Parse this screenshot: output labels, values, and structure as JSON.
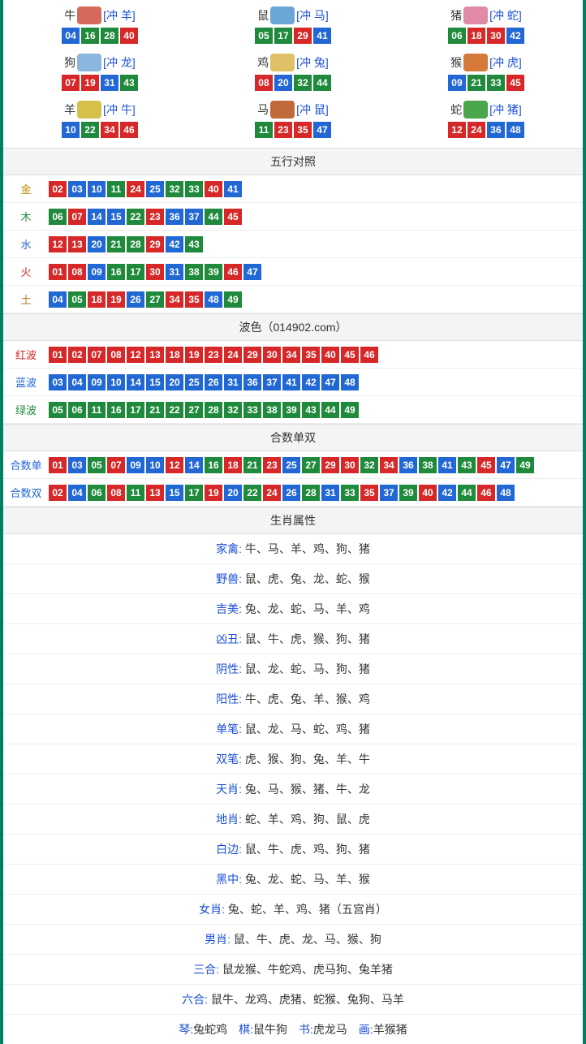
{
  "colors": {
    "red": "#d62828",
    "blue": "#2268d4",
    "green": "#1f8a3b",
    "border": "#008060",
    "title_bg": "#f4f4f4",
    "link_blue": "#1a4fd6",
    "gold": "#c08a00",
    "wood": "#1f8a3b",
    "water": "#2268d4",
    "fire": "#d62828",
    "earth": "#b07d2b"
  },
  "zodiac": [
    {
      "name": "牛",
      "conflict": "[冲 羊]",
      "img_color": "#d66a5a",
      "nums": [
        {
          "n": "04",
          "c": "blue"
        },
        {
          "n": "16",
          "c": "green"
        },
        {
          "n": "28",
          "c": "green"
        },
        {
          "n": "40",
          "c": "red"
        }
      ]
    },
    {
      "name": "鼠",
      "conflict": "[冲 马]",
      "img_color": "#6aa6d6",
      "nums": [
        {
          "n": "05",
          "c": "green"
        },
        {
          "n": "17",
          "c": "green"
        },
        {
          "n": "29",
          "c": "red"
        },
        {
          "n": "41",
          "c": "blue"
        }
      ]
    },
    {
      "name": "猪",
      "conflict": "[冲 蛇]",
      "img_color": "#e08aa6",
      "nums": [
        {
          "n": "06",
          "c": "green"
        },
        {
          "n": "18",
          "c": "red"
        },
        {
          "n": "30",
          "c": "red"
        },
        {
          "n": "42",
          "c": "blue"
        }
      ]
    },
    {
      "name": "狗",
      "conflict": "[冲 龙]",
      "img_color": "#8ab6e0",
      "nums": [
        {
          "n": "07",
          "c": "red"
        },
        {
          "n": "19",
          "c": "red"
        },
        {
          "n": "31",
          "c": "blue"
        },
        {
          "n": "43",
          "c": "green"
        }
      ]
    },
    {
      "name": "鸡",
      "conflict": "[冲 兔]",
      "img_color": "#e0c066",
      "nums": [
        {
          "n": "08",
          "c": "red"
        },
        {
          "n": "20",
          "c": "blue"
        },
        {
          "n": "32",
          "c": "green"
        },
        {
          "n": "44",
          "c": "green"
        }
      ]
    },
    {
      "name": "猴",
      "conflict": "[冲 虎]",
      "img_color": "#d67a3a",
      "nums": [
        {
          "n": "09",
          "c": "blue"
        },
        {
          "n": "21",
          "c": "green"
        },
        {
          "n": "33",
          "c": "green"
        },
        {
          "n": "45",
          "c": "red"
        }
      ]
    },
    {
      "name": "羊",
      "conflict": "[冲 牛]",
      "img_color": "#d6c04a",
      "nums": [
        {
          "n": "10",
          "c": "blue"
        },
        {
          "n": "22",
          "c": "green"
        },
        {
          "n": "34",
          "c": "red"
        },
        {
          "n": "46",
          "c": "red"
        }
      ]
    },
    {
      "name": "马",
      "conflict": "[冲 鼠]",
      "img_color": "#c06a3a",
      "nums": [
        {
          "n": "11",
          "c": "green"
        },
        {
          "n": "23",
          "c": "red"
        },
        {
          "n": "35",
          "c": "red"
        },
        {
          "n": "47",
          "c": "blue"
        }
      ]
    },
    {
      "name": "蛇",
      "conflict": "[冲 猪]",
      "img_color": "#4aa64a",
      "nums": [
        {
          "n": "12",
          "c": "red"
        },
        {
          "n": "24",
          "c": "red"
        },
        {
          "n": "36",
          "c": "blue"
        },
        {
          "n": "48",
          "c": "blue"
        }
      ]
    }
  ],
  "wuxing_title": "五行对照",
  "wuxing": [
    {
      "name": "金",
      "label_color": "gold",
      "nums": [
        {
          "n": "02",
          "c": "red"
        },
        {
          "n": "03",
          "c": "blue"
        },
        {
          "n": "10",
          "c": "blue"
        },
        {
          "n": "11",
          "c": "green"
        },
        {
          "n": "24",
          "c": "red"
        },
        {
          "n": "25",
          "c": "blue"
        },
        {
          "n": "32",
          "c": "green"
        },
        {
          "n": "33",
          "c": "green"
        },
        {
          "n": "40",
          "c": "red"
        },
        {
          "n": "41",
          "c": "blue"
        }
      ]
    },
    {
      "name": "木",
      "label_color": "wood",
      "nums": [
        {
          "n": "06",
          "c": "green"
        },
        {
          "n": "07",
          "c": "red"
        },
        {
          "n": "14",
          "c": "blue"
        },
        {
          "n": "15",
          "c": "blue"
        },
        {
          "n": "22",
          "c": "green"
        },
        {
          "n": "23",
          "c": "red"
        },
        {
          "n": "36",
          "c": "blue"
        },
        {
          "n": "37",
          "c": "blue"
        },
        {
          "n": "44",
          "c": "green"
        },
        {
          "n": "45",
          "c": "red"
        }
      ]
    },
    {
      "name": "水",
      "label_color": "water",
      "nums": [
        {
          "n": "12",
          "c": "red"
        },
        {
          "n": "13",
          "c": "red"
        },
        {
          "n": "20",
          "c": "blue"
        },
        {
          "n": "21",
          "c": "green"
        },
        {
          "n": "28",
          "c": "green"
        },
        {
          "n": "29",
          "c": "red"
        },
        {
          "n": "42",
          "c": "blue"
        },
        {
          "n": "43",
          "c": "green"
        }
      ]
    },
    {
      "name": "火",
      "label_color": "fire",
      "nums": [
        {
          "n": "01",
          "c": "red"
        },
        {
          "n": "08",
          "c": "red"
        },
        {
          "n": "09",
          "c": "blue"
        },
        {
          "n": "16",
          "c": "green"
        },
        {
          "n": "17",
          "c": "green"
        },
        {
          "n": "30",
          "c": "red"
        },
        {
          "n": "31",
          "c": "blue"
        },
        {
          "n": "38",
          "c": "green"
        },
        {
          "n": "39",
          "c": "green"
        },
        {
          "n": "46",
          "c": "red"
        },
        {
          "n": "47",
          "c": "blue"
        }
      ]
    },
    {
      "name": "土",
      "label_color": "earth",
      "nums": [
        {
          "n": "04",
          "c": "blue"
        },
        {
          "n": "05",
          "c": "green"
        },
        {
          "n": "18",
          "c": "red"
        },
        {
          "n": "19",
          "c": "red"
        },
        {
          "n": "26",
          "c": "blue"
        },
        {
          "n": "27",
          "c": "green"
        },
        {
          "n": "34",
          "c": "red"
        },
        {
          "n": "35",
          "c": "red"
        },
        {
          "n": "48",
          "c": "blue"
        },
        {
          "n": "49",
          "c": "green"
        }
      ]
    }
  ],
  "bose_title": "波色（014902.com）",
  "bose": [
    {
      "name": "红波",
      "label_color": "fire",
      "nums": [
        {
          "n": "01",
          "c": "red"
        },
        {
          "n": "02",
          "c": "red"
        },
        {
          "n": "07",
          "c": "red"
        },
        {
          "n": "08",
          "c": "red"
        },
        {
          "n": "12",
          "c": "red"
        },
        {
          "n": "13",
          "c": "red"
        },
        {
          "n": "18",
          "c": "red"
        },
        {
          "n": "19",
          "c": "red"
        },
        {
          "n": "23",
          "c": "red"
        },
        {
          "n": "24",
          "c": "red"
        },
        {
          "n": "29",
          "c": "red"
        },
        {
          "n": "30",
          "c": "red"
        },
        {
          "n": "34",
          "c": "red"
        },
        {
          "n": "35",
          "c": "red"
        },
        {
          "n": "40",
          "c": "red"
        },
        {
          "n": "45",
          "c": "red"
        },
        {
          "n": "46",
          "c": "red"
        }
      ]
    },
    {
      "name": "蓝波",
      "label_color": "water",
      "nums": [
        {
          "n": "03",
          "c": "blue"
        },
        {
          "n": "04",
          "c": "blue"
        },
        {
          "n": "09",
          "c": "blue"
        },
        {
          "n": "10",
          "c": "blue"
        },
        {
          "n": "14",
          "c": "blue"
        },
        {
          "n": "15",
          "c": "blue"
        },
        {
          "n": "20",
          "c": "blue"
        },
        {
          "n": "25",
          "c": "blue"
        },
        {
          "n": "26",
          "c": "blue"
        },
        {
          "n": "31",
          "c": "blue"
        },
        {
          "n": "36",
          "c": "blue"
        },
        {
          "n": "37",
          "c": "blue"
        },
        {
          "n": "41",
          "c": "blue"
        },
        {
          "n": "42",
          "c": "blue"
        },
        {
          "n": "47",
          "c": "blue"
        },
        {
          "n": "48",
          "c": "blue"
        }
      ]
    },
    {
      "name": "绿波",
      "label_color": "wood",
      "nums": [
        {
          "n": "05",
          "c": "green"
        },
        {
          "n": "06",
          "c": "green"
        },
        {
          "n": "11",
          "c": "green"
        },
        {
          "n": "16",
          "c": "green"
        },
        {
          "n": "17",
          "c": "green"
        },
        {
          "n": "21",
          "c": "green"
        },
        {
          "n": "22",
          "c": "green"
        },
        {
          "n": "27",
          "c": "green"
        },
        {
          "n": "28",
          "c": "green"
        },
        {
          "n": "32",
          "c": "green"
        },
        {
          "n": "33",
          "c": "green"
        },
        {
          "n": "38",
          "c": "green"
        },
        {
          "n": "39",
          "c": "green"
        },
        {
          "n": "43",
          "c": "green"
        },
        {
          "n": "44",
          "c": "green"
        },
        {
          "n": "49",
          "c": "green"
        }
      ]
    }
  ],
  "heshu_title": "合数单双",
  "heshu": [
    {
      "name": "合数单",
      "label_color": "water",
      "nums": [
        {
          "n": "01",
          "c": "red"
        },
        {
          "n": "03",
          "c": "blue"
        },
        {
          "n": "05",
          "c": "green"
        },
        {
          "n": "07",
          "c": "red"
        },
        {
          "n": "09",
          "c": "blue"
        },
        {
          "n": "10",
          "c": "blue"
        },
        {
          "n": "12",
          "c": "red"
        },
        {
          "n": "14",
          "c": "blue"
        },
        {
          "n": "16",
          "c": "green"
        },
        {
          "n": "18",
          "c": "red"
        },
        {
          "n": "21",
          "c": "green"
        },
        {
          "n": "23",
          "c": "red"
        },
        {
          "n": "25",
          "c": "blue"
        },
        {
          "n": "27",
          "c": "green"
        },
        {
          "n": "29",
          "c": "red"
        },
        {
          "n": "30",
          "c": "red"
        },
        {
          "n": "32",
          "c": "green"
        },
        {
          "n": "34",
          "c": "red"
        },
        {
          "n": "36",
          "c": "blue"
        },
        {
          "n": "38",
          "c": "green"
        },
        {
          "n": "41",
          "c": "blue"
        },
        {
          "n": "43",
          "c": "green"
        },
        {
          "n": "45",
          "c": "red"
        },
        {
          "n": "47",
          "c": "blue"
        },
        {
          "n": "49",
          "c": "green"
        }
      ]
    },
    {
      "name": "合数双",
      "label_color": "water",
      "nums": [
        {
          "n": "02",
          "c": "red"
        },
        {
          "n": "04",
          "c": "blue"
        },
        {
          "n": "06",
          "c": "green"
        },
        {
          "n": "08",
          "c": "red"
        },
        {
          "n": "11",
          "c": "green"
        },
        {
          "n": "13",
          "c": "red"
        },
        {
          "n": "15",
          "c": "blue"
        },
        {
          "n": "17",
          "c": "green"
        },
        {
          "n": "19",
          "c": "red"
        },
        {
          "n": "20",
          "c": "blue"
        },
        {
          "n": "22",
          "c": "green"
        },
        {
          "n": "24",
          "c": "red"
        },
        {
          "n": "26",
          "c": "blue"
        },
        {
          "n": "28",
          "c": "green"
        },
        {
          "n": "31",
          "c": "blue"
        },
        {
          "n": "33",
          "c": "green"
        },
        {
          "n": "35",
          "c": "red"
        },
        {
          "n": "37",
          "c": "blue"
        },
        {
          "n": "39",
          "c": "green"
        },
        {
          "n": "40",
          "c": "red"
        },
        {
          "n": "42",
          "c": "blue"
        },
        {
          "n": "44",
          "c": "green"
        },
        {
          "n": "46",
          "c": "red"
        },
        {
          "n": "48",
          "c": "blue"
        }
      ]
    }
  ],
  "attr_title": "生肖属性",
  "attrs": [
    {
      "label": "家禽:",
      "value": " 牛、马、羊、鸡、狗、猪"
    },
    {
      "label": "野兽:",
      "value": " 鼠、虎、兔、龙、蛇、猴"
    },
    {
      "label": "吉美:",
      "value": " 兔、龙、蛇、马、羊、鸡"
    },
    {
      "label": "凶丑:",
      "value": " 鼠、牛、虎、猴、狗、猪"
    },
    {
      "label": "阴性:",
      "value": " 鼠、龙、蛇、马、狗、猪"
    },
    {
      "label": "阳性:",
      "value": " 牛、虎、兔、羊、猴、鸡"
    },
    {
      "label": "单笔:",
      "value": " 鼠、龙、马、蛇、鸡、猪"
    },
    {
      "label": "双笔:",
      "value": " 虎、猴、狗、兔、羊、牛"
    },
    {
      "label": "天肖:",
      "value": " 兔、马、猴、猪、牛、龙"
    },
    {
      "label": "地肖:",
      "value": " 蛇、羊、鸡、狗、鼠、虎"
    },
    {
      "label": "白边:",
      "value": " 鼠、牛、虎、鸡、狗、猪"
    },
    {
      "label": "黑中:",
      "value": " 兔、龙、蛇、马、羊、猴"
    },
    {
      "label": "女肖:",
      "value": " 兔、蛇、羊、鸡、猪（五宫肖）"
    },
    {
      "label": "男肖:",
      "value": " 鼠、牛、虎、龙、马、猴、狗"
    },
    {
      "label": "三合:",
      "value": " 鼠龙猴、牛蛇鸡、虎马狗、兔羊猪"
    },
    {
      "label": "六合:",
      "value": " 鼠牛、龙鸡、虎猪、蛇猴、兔狗、马羊"
    }
  ],
  "footer_segments": [
    {
      "label": "琴:",
      "value": "兔蛇鸡　"
    },
    {
      "label": "棋:",
      "value": "鼠牛狗　"
    },
    {
      "label": "书:",
      "value": "虎龙马　"
    },
    {
      "label": "画:",
      "value": "羊猴猪"
    }
  ]
}
